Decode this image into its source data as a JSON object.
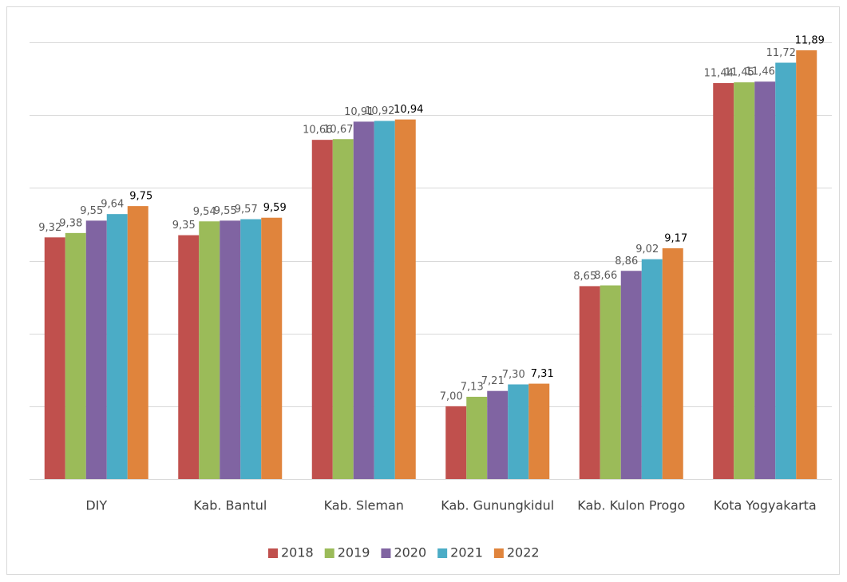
{
  "chart_data": {
    "type": "bar",
    "categories": [
      "DIY",
      "Kab. Bantul",
      "Kab. Sleman",
      "Kab. Gunungkidul",
      "Kab. Kulon Progo",
      "Kota Yogyakarta"
    ],
    "series": [
      {
        "name": "2018",
        "color": "#c0504d",
        "values": [
          9.32,
          9.35,
          10.66,
          7.0,
          8.65,
          11.44
        ],
        "value_labels": [
          "9,32",
          "9,35",
          "10,66",
          "7,00",
          "8,65",
          "11,44"
        ]
      },
      {
        "name": "2019",
        "color": "#9bbb59",
        "values": [
          9.38,
          9.54,
          10.67,
          7.13,
          8.66,
          11.45
        ],
        "value_labels": [
          "9,38",
          "9,54",
          "10,67",
          "7,13",
          "8,66",
          "11,45"
        ]
      },
      {
        "name": "2020",
        "color": "#8064a2",
        "values": [
          9.55,
          9.55,
          10.91,
          7.21,
          8.86,
          11.46
        ],
        "value_labels": [
          "9,55",
          "9,55",
          "10,91",
          "7,21",
          "8,86",
          "11,46"
        ]
      },
      {
        "name": "2021",
        "color": "#4bacc6",
        "values": [
          9.64,
          9.57,
          10.92,
          7.3,
          9.02,
          11.72
        ],
        "value_labels": [
          "9,64",
          "9,57",
          "10,92",
          "7,30",
          "9,02",
          "11,72"
        ]
      },
      {
        "name": "2022",
        "color": "#e0843c",
        "values": [
          9.75,
          9.59,
          10.94,
          7.31,
          9.17,
          11.89
        ],
        "value_labels": [
          "9,75",
          "9,59",
          "10,94",
          "7,31",
          "9,17",
          "11,89"
        ]
      }
    ],
    "ylim": [
      6,
      12
    ],
    "yticks": [
      6,
      7,
      8,
      9,
      10,
      11,
      12
    ],
    "grid": true,
    "legend": "bottom"
  }
}
